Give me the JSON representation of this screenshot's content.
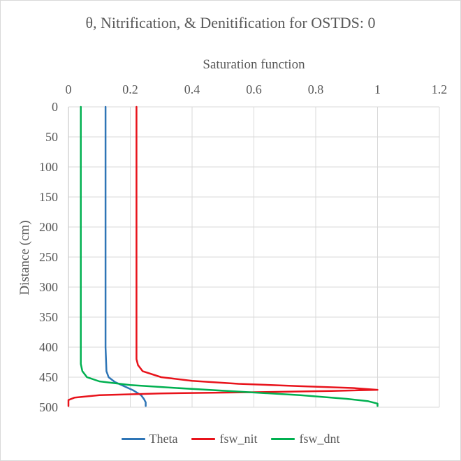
{
  "chart_data": {
    "type": "line",
    "title": "θ, Nitrification, & Denitification for OSTDS: 0",
    "xlabel": "Saturation function",
    "ylabel": "Distance (cm)",
    "xlim": [
      0,
      1.2
    ],
    "ylim": [
      0,
      500
    ],
    "x_axis_position": "top",
    "y_axis_reversed": true,
    "x_ticks": [
      "0",
      "0.2",
      "0.4",
      "0.6",
      "0.8",
      "1",
      "1.2"
    ],
    "y_ticks": [
      "0",
      "50",
      "100",
      "150",
      "200",
      "250",
      "300",
      "350",
      "400",
      "450",
      "500"
    ],
    "grid": true,
    "legend_position": "bottom",
    "series": [
      {
        "name": "Theta",
        "color": "#2e75b6",
        "x": [
          0.12,
          0.12,
          0.12,
          0.12,
          0.123,
          0.13,
          0.15,
          0.18,
          0.21,
          0.235,
          0.245,
          0.25,
          0.25
        ],
        "y": [
          0,
          100,
          200,
          400,
          440,
          450,
          458,
          465,
          472,
          480,
          487,
          492,
          498
        ]
      },
      {
        "name": "fsw_nit",
        "color": "#e8131b",
        "x": [
          0.22,
          0.22,
          0.22,
          0.22,
          0.225,
          0.24,
          0.3,
          0.4,
          0.55,
          0.75,
          0.92,
          1.0,
          0.85,
          0.6,
          0.3,
          0.1,
          0.02,
          0.0,
          0.0
        ],
        "y": [
          0,
          100,
          200,
          420,
          430,
          440,
          450,
          456,
          461,
          465,
          468,
          471,
          473,
          475,
          477,
          480,
          484,
          488,
          498
        ]
      },
      {
        "name": "fsw_dnt",
        "color": "#00b050",
        "x": [
          0.04,
          0.04,
          0.04,
          0.04,
          0.045,
          0.06,
          0.1,
          0.2,
          0.35,
          0.55,
          0.75,
          0.9,
          0.97,
          1.0,
          1.0
        ],
        "y": [
          0,
          100,
          200,
          428,
          440,
          450,
          457,
          463,
          468,
          474,
          480,
          486,
          490,
          494,
          498
        ]
      }
    ]
  }
}
